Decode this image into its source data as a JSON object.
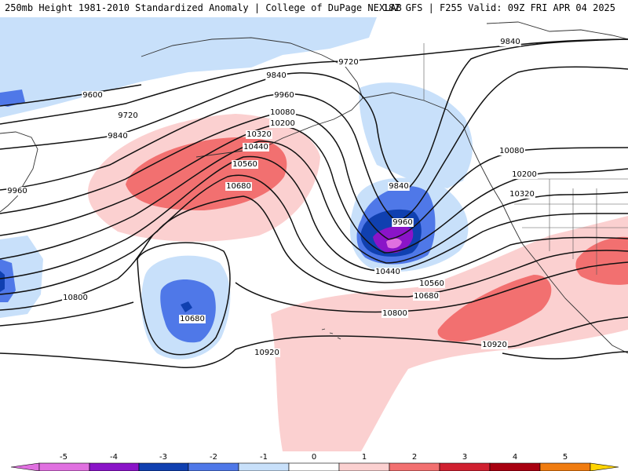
{
  "header": {
    "title_left": "250mb Height 1981-2010 Standardized Anomaly | College of DuPage NEXLAB",
    "title_right": "18Z GFS | F255 Valid: 09Z FRI APR 04 2025"
  },
  "colors": {
    "m5": "#e070e0",
    "m4": "#8a14c8",
    "m3": "#1040b0",
    "m2": "#4f78e8",
    "m1": "#c8e0fa",
    "p1": "#fbd0d0",
    "p2": "#f27070",
    "p3": "#d02030",
    "p4": "#a80010",
    "p5": "#f07c10",
    "p6": "#ffd400"
  },
  "contour_labels": {
    "l9600": "9600",
    "l9720a": "9720",
    "l9720b": "9720",
    "l9840a": "9840",
    "l9840b": "9840",
    "l9840c": "9840",
    "l9840d": "9840",
    "l9960a": "9960",
    "l9960b": "9960",
    "l9960c": "9960",
    "l10080a": "10080",
    "l10080b": "10080",
    "l10200a": "10200",
    "l10200b": "10200",
    "l10320a": "10320",
    "l10320b": "10320",
    "l10440a": "10440",
    "l10440b": "10440",
    "l10560a": "10560",
    "l10560b": "10560",
    "l10680a": "10680",
    "l10680b": "10680",
    "l10680c": "10680",
    "l10800a": "10800",
    "l10800b": "10800",
    "l10920a": "10920",
    "l10920b": "10920"
  },
  "colorbar": {
    "ticks": [
      "-5",
      "-4",
      "-3",
      "-2",
      "-1",
      "0",
      "1",
      "2",
      "3",
      "4",
      "5"
    ]
  }
}
